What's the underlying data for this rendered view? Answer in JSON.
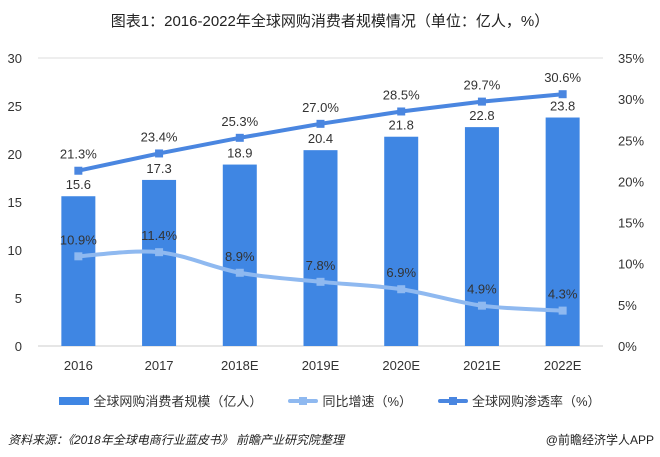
{
  "title": "图表1：2016-2022年全球网购消费者规模情况（单位：亿人，%）",
  "chart_data": {
    "type": "bar+line",
    "categories": [
      "2016",
      "2017",
      "2018E",
      "2019E",
      "2020E",
      "2021E",
      "2022E"
    ],
    "series": [
      {
        "name": "全球网购消费者规模（亿人）",
        "type": "bar",
        "axis": "left",
        "values": [
          15.6,
          17.3,
          18.9,
          20.4,
          21.8,
          22.8,
          23.8
        ],
        "labels": [
          "15.6",
          "17.3",
          "18.9",
          "20.4",
          "21.8",
          "22.8",
          "23.8"
        ],
        "color": "#3f86e3"
      },
      {
        "name": "同比增速（%）",
        "type": "line",
        "axis": "right",
        "smooth": true,
        "values": [
          10.9,
          11.4,
          8.9,
          7.8,
          6.9,
          4.9,
          4.3
        ],
        "labels": [
          "10.9%",
          "11.4%",
          "8.9%",
          "7.8%",
          "6.9%",
          "4.9%",
          "4.3%"
        ],
        "color": "#8fb9f0"
      },
      {
        "name": "全球网购渗透率（%）",
        "type": "line",
        "axis": "right",
        "values": [
          21.3,
          23.4,
          25.3,
          27.0,
          28.5,
          29.7,
          30.6
        ],
        "labels": [
          "21.3%",
          "23.4%",
          "25.3%",
          "27.0%",
          "28.5%",
          "29.7%",
          "30.6%"
        ],
        "color": "#4a86e0"
      }
    ],
    "left_axis": {
      "range": [
        0,
        30
      ],
      "ticks": [
        "0",
        "5",
        "10",
        "15",
        "20",
        "25",
        "30"
      ]
    },
    "right_axis": {
      "range": [
        0,
        35
      ],
      "ticks": [
        "0%",
        "5%",
        "10%",
        "15%",
        "20%",
        "25%",
        "30%",
        "35%"
      ]
    },
    "grid": false,
    "legend": "bottom"
  },
  "source": "资料来源：《2018年全球电商行业蓝皮书》 前瞻产业研究院整理",
  "credit": "@前瞻经济学人APP"
}
